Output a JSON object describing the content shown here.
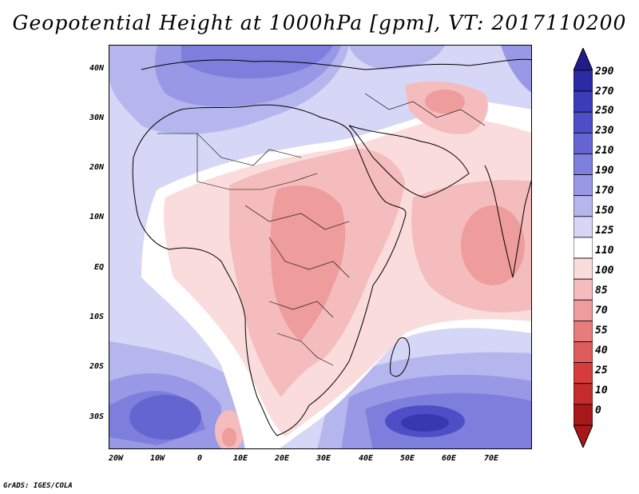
{
  "title": "Geopotential Height at 1000hPa [gpm], VT: 2017110200",
  "credit": "GrADS: IGES/COLA",
  "map": {
    "lat_labels": [
      "40N",
      "30N",
      "20N",
      "10N",
      "EQ",
      "10S",
      "20S",
      "30S"
    ],
    "lon_labels": [
      "20W",
      "10W",
      "0",
      "10E",
      "20E",
      "30E",
      "40E",
      "50E",
      "60E",
      "70E"
    ]
  },
  "colorbar": {
    "levels": [
      "290",
      "270",
      "250",
      "230",
      "210",
      "190",
      "170",
      "150",
      "125",
      "110",
      "100",
      "85",
      "70",
      "55",
      "40",
      "25",
      "10",
      "0"
    ],
    "colors": [
      "#221c8a",
      "#2b2ba6",
      "#3c3cb8",
      "#4e4ec6",
      "#6565d2",
      "#7e7edc",
      "#9898e6",
      "#b6b6ee",
      "#d6d6f6",
      "#ffffff",
      "#fbdcdc",
      "#f4bcbc",
      "#ee9c9c",
      "#e67c7c",
      "#de5c5c",
      "#d63c3c",
      "#c42c2c",
      "#a81818"
    ],
    "field_colors": {
      "deep_blue": "#3838b0",
      "blue": "#7e7edc",
      "light_blue": "#b6b6ee",
      "pale_blue": "#d6d6f6",
      "white": "#ffffff",
      "pale_pink": "#fbdcdc",
      "pink": "#f4bcbc",
      "red": "#ee9c9c"
    }
  }
}
